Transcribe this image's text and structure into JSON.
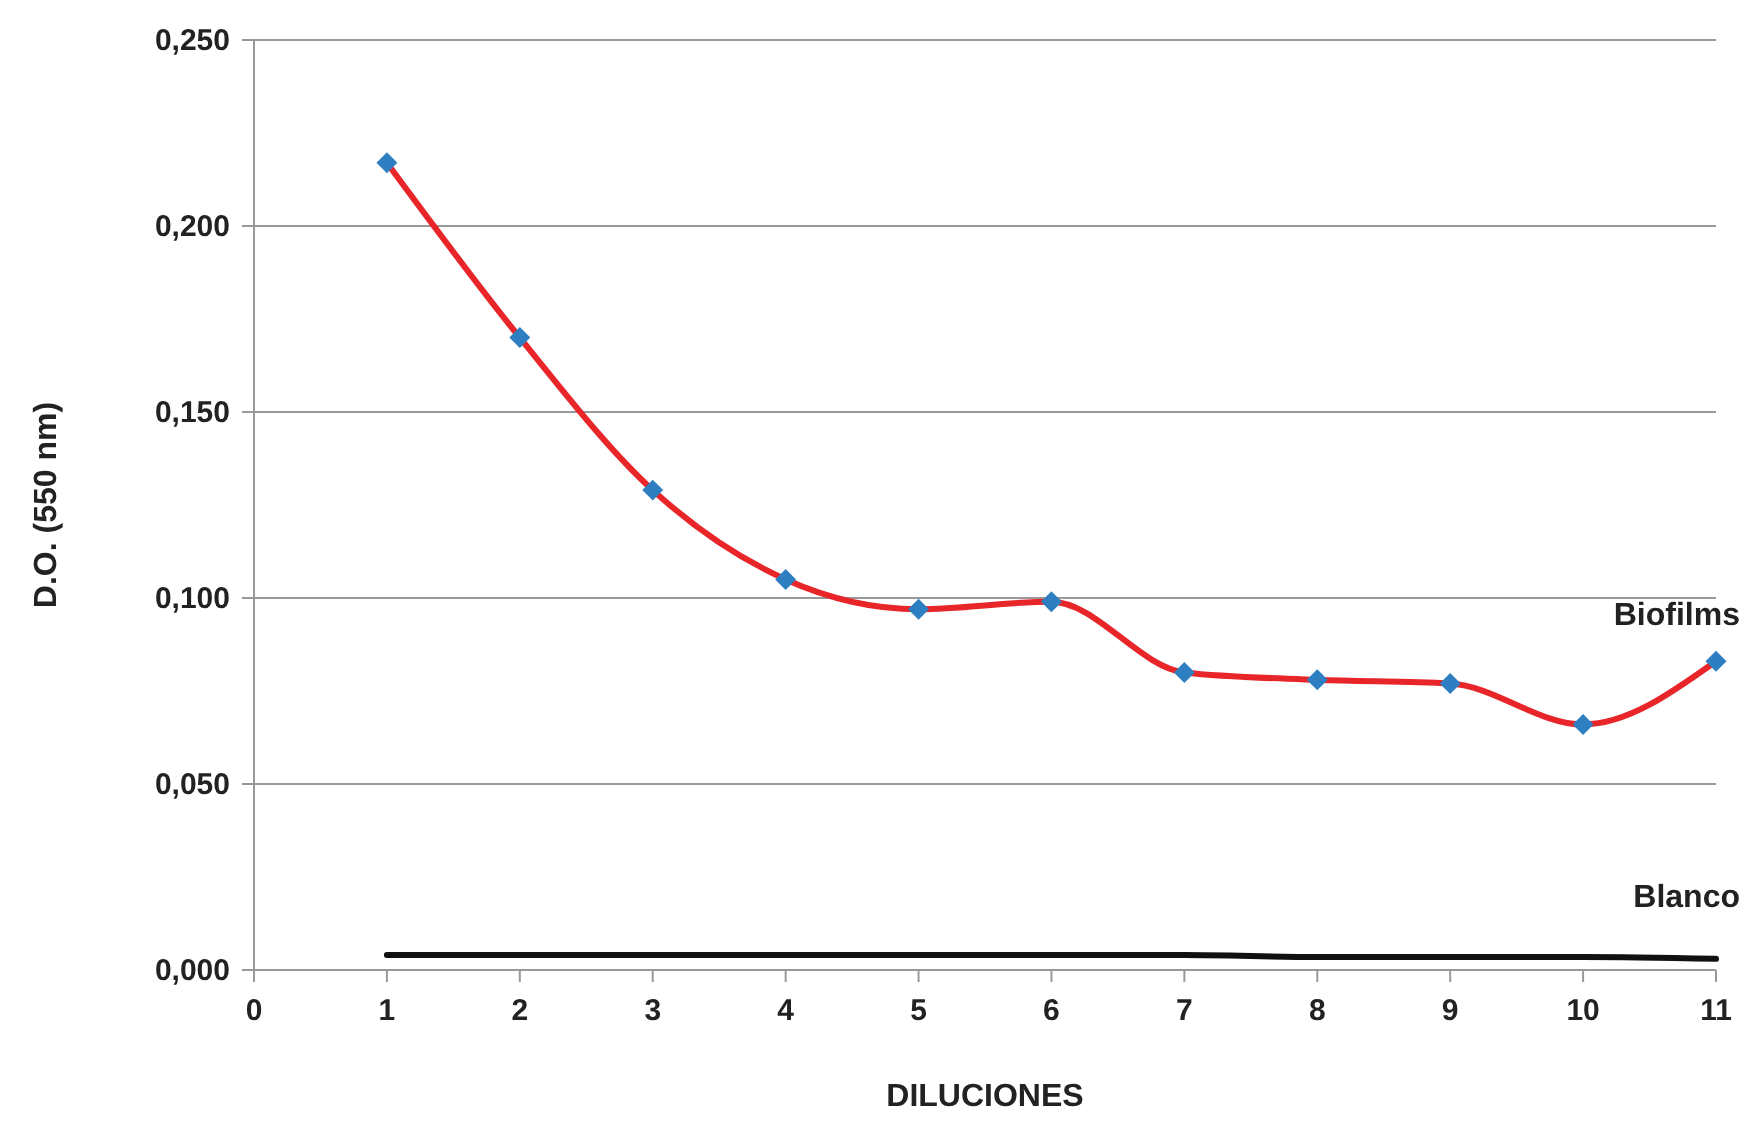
{
  "chart_data": {
    "type": "line",
    "xlabel": "DILUCIONES",
    "ylabel": "D.O. (550 nm)",
    "x": [
      1,
      2,
      3,
      4,
      5,
      6,
      7,
      8,
      9,
      10,
      11
    ],
    "xlim": [
      0,
      11
    ],
    "xticks": [
      0,
      1,
      2,
      3,
      4,
      5,
      6,
      7,
      8,
      9,
      10,
      11
    ],
    "ylim": [
      0,
      0.25
    ],
    "yticks": [
      {
        "value": 0,
        "label": "0,000"
      },
      {
        "value": 0.05,
        "label": "0,050"
      },
      {
        "value": 0.1,
        "label": "0,100"
      },
      {
        "value": 0.15,
        "label": "0,150"
      },
      {
        "value": 0.2,
        "label": "0,200"
      },
      {
        "value": 0.25,
        "label": "0,250"
      }
    ],
    "grid": "y",
    "series": [
      {
        "name": "Biofilms",
        "color": "#e8262a",
        "marker": "diamond",
        "colors": [
          "#2e7fc1",
          "#2e7fc1",
          "#2e7fc1",
          "#2e7fc1",
          "#2e7fc1",
          "#2e7fc1",
          "#2e7fc1",
          "#2e7fc1",
          "#2e7fc1",
          "#2e7fc1",
          "#2e7fc1"
        ],
        "values": [
          0.217,
          0.17,
          0.129,
          0.105,
          0.097,
          0.099,
          0.08,
          0.078,
          0.077,
          0.066,
          0.083
        ]
      },
      {
        "name": "Blanco",
        "color": "#111111",
        "marker": "none",
        "values": [
          0.004,
          0.004,
          0.004,
          0.004,
          0.004,
          0.004,
          0.004,
          0.0035,
          0.0035,
          0.0035,
          0.003
        ]
      }
    ]
  }
}
